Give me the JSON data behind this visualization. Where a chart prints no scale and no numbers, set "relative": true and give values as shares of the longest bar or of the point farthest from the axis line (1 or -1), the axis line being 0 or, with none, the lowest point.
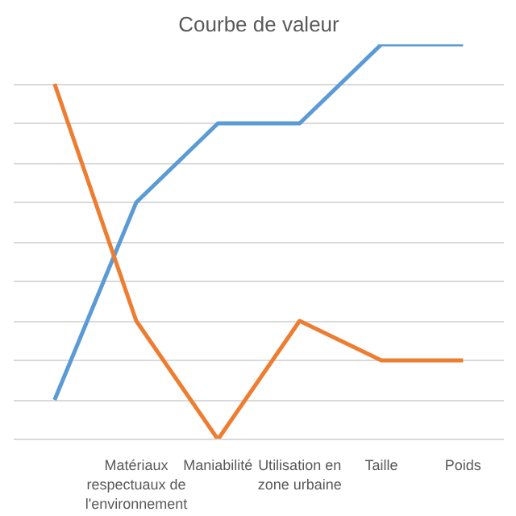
{
  "chart_data": {
    "type": "line",
    "title": "Courbe de valeur",
    "relative": true,
    "grid": "y",
    "categories": [
      null,
      "Matériaux respectuaux de l'environnement",
      "Maniabilité",
      "Utilisation en zone urbaine",
      "Taille",
      "Poids"
    ],
    "series": [
      {
        "color": "#5b9bd5",
        "values": [
          0.1,
          0.6,
          0.8,
          0.8,
          1,
          1
        ]
      },
      {
        "color": "#ed7d31",
        "values": [
          0.9,
          0.3,
          0,
          0.3,
          0.2,
          0.2
        ]
      }
    ]
  }
}
